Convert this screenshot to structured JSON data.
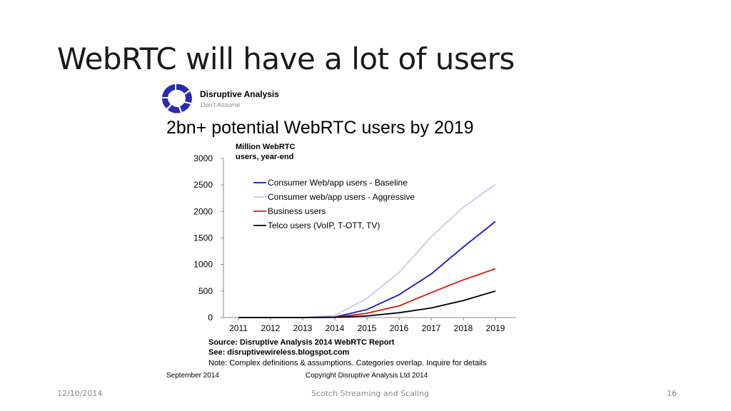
{
  "slide": {
    "title": "WebRTC will have a lot of users",
    "footer_date": "12/10/2014",
    "footer_center": "Scotch Streaming and Scaling",
    "page_number": "16"
  },
  "logo": {
    "name": "Disruptive Analysis",
    "tagline": "Don't Assume",
    "color": "#2b2bb0"
  },
  "chart_data": {
    "type": "line",
    "title": "2bn+ potential WebRTC users by 2019",
    "unit_label_line1": "Million WebRTC",
    "unit_label_line2": "users, year-end",
    "x": [
      "2011",
      "2012",
      "2013",
      "2014",
      "2015",
      "2016",
      "2017",
      "2018",
      "2019"
    ],
    "ylim": [
      0,
      3000
    ],
    "yticks": [
      "0",
      "500",
      "1000",
      "1500",
      "2000",
      "2500",
      "3000"
    ],
    "grid": false,
    "legend_position": "top-left",
    "series": [
      {
        "name": "Consumer Web/app users - Baseline",
        "color": "#1414d4",
        "values": [
          0,
          0,
          0,
          10,
          150,
          430,
          820,
          1330,
          1810
        ]
      },
      {
        "name": "Consumer web/app users - Aggressive",
        "color": "#c8c8f2",
        "values": [
          0,
          0,
          0,
          40,
          360,
          850,
          1520,
          2080,
          2510
        ]
      },
      {
        "name": "Business users",
        "color": "#e01414",
        "values": [
          0,
          0,
          0,
          5,
          80,
          220,
          470,
          710,
          920
        ]
      },
      {
        "name": "Telco users (VoIP, T-OTT, TV)",
        "color": "#000000",
        "values": [
          0,
          0,
          0,
          3,
          30,
          90,
          180,
          320,
          500
        ]
      }
    ]
  },
  "source": {
    "line1": "Source: Disruptive Analysis 2014 WebRTC Report",
    "line2": "See: disruptivewireless.blogspot.com",
    "note": "Note: Complex definitions & assumptions. Categories overlap. Inquire for details",
    "date": "September 2014",
    "copyright": "Copyright Disruptive Analysis Ltd 2014"
  }
}
